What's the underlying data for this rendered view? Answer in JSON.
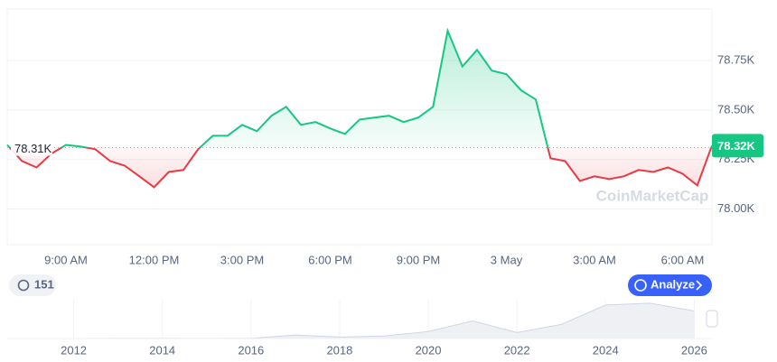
{
  "chart_data": [
    {
      "type": "line",
      "categories": [
        null,
        null,
        null,
        null,
        "9:00 AM",
        null,
        null,
        null,
        null,
        null,
        "12:00 PM",
        null,
        null,
        null,
        null,
        null,
        "3:00 PM",
        null,
        null,
        null,
        null,
        null,
        "6:00 PM",
        null,
        null,
        null,
        null,
        null,
        "9:00 PM",
        null,
        null,
        null,
        null,
        null,
        "3 May",
        null,
        null,
        null,
        null,
        null,
        "3:00 AM",
        null,
        null,
        null,
        null,
        null,
        "6:00 AM",
        null,
        null
      ],
      "values": [
        78324,
        78242,
        78210,
        78279,
        78324,
        78315,
        78302,
        78242,
        78219,
        78165,
        78110,
        78187,
        78197,
        78302,
        78370,
        78370,
        78425,
        78393,
        78471,
        78516,
        78425,
        78439,
        78407,
        78379,
        78452,
        78462,
        78471,
        78439,
        78462,
        78516,
        78900,
        78720,
        78804,
        78699,
        78681,
        78599,
        78553,
        78256,
        78242,
        78142,
        78165,
        78151,
        78165,
        78197,
        78187,
        78210,
        78178,
        78119,
        78320
      ],
      "baseline": {
        "value": 78310,
        "label": "78.31K"
      },
      "last_price": {
        "value": 78320,
        "label": "78.32K"
      },
      "up_color": "#16c784",
      "down_color": "#ea3943",
      "ylim": [
        77820,
        79010
      ],
      "yticks": [
        {
          "value": 78000,
          "label": "78.00K"
        },
        {
          "value": 78250,
          "label": "78.25K"
        },
        {
          "value": 78500,
          "label": "78.50K"
        },
        {
          "value": 78750,
          "label": "78.75K"
        }
      ],
      "grid": true
    },
    {
      "type": "area",
      "x": [
        2011,
        2012,
        2013,
        2014,
        2015,
        2016,
        2017,
        2018,
        2019,
        2020,
        2021,
        2022,
        2023,
        2024,
        2025,
        2026
      ],
      "values": [
        5,
        10,
        700,
        400,
        300,
        700,
        10000,
        4000,
        7000,
        20000,
        50000,
        17000,
        40000,
        95000,
        100000,
        78000
      ],
      "color": "#cfd6e4",
      "xlim": [
        2010.5,
        2026.4
      ],
      "xticks": [
        2012,
        2014,
        2016,
        2018,
        2020,
        2022,
        2024,
        2026
      ],
      "ylim": [
        0,
        110000
      ]
    }
  ],
  "watermark": "CoinMarketCap",
  "history_count": 151,
  "analyze_button": "Analyze"
}
